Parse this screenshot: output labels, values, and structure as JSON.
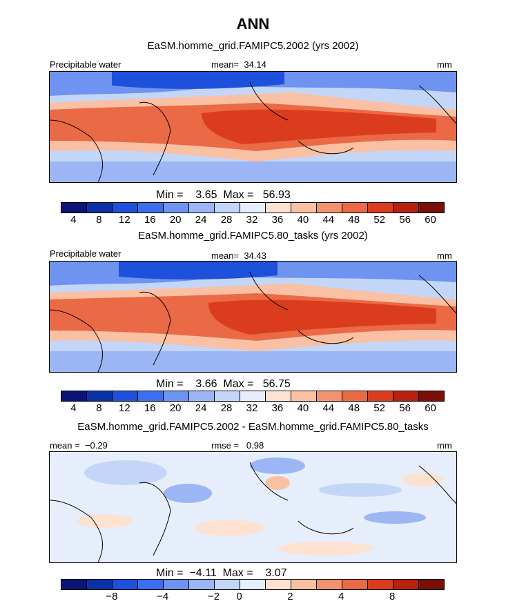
{
  "title": "ANN",
  "colors": [
    "#0c1478",
    "#0a32a8",
    "#1e50dc",
    "#3c6ef0",
    "#6f93f0",
    "#9cb6f5",
    "#c4d6f8",
    "#e6eefc",
    "#fde2d2",
    "#f9c0a4",
    "#f3926e",
    "#ea6a46",
    "#dc3c1e",
    "#b8200e",
    "#7a0f0a"
  ],
  "panels": [
    {
      "subtitle": "EaSM.homme_grid.FAMIPC5.2002 (yrs 2002)",
      "left_label": "Precipitable water",
      "center_label": "mean=  34.14",
      "units": "mm",
      "minmax": "Min =    3.65  Max =   56.93",
      "ticks": [
        "4",
        "8",
        "12",
        "16",
        "20",
        "24",
        "28",
        "32",
        "36",
        "40",
        "44",
        "48",
        "52",
        "56",
        "60"
      ]
    },
    {
      "subtitle": "EaSM.homme_grid.FAMIPC5.80_tasks (yrs 2002)",
      "left_label": "Precipitable water",
      "center_label": "mean=  34.43",
      "units": "mm",
      "minmax": "Min =    3.66  Max =   56.75",
      "ticks": [
        "4",
        "8",
        "12",
        "16",
        "20",
        "24",
        "28",
        "32",
        "36",
        "40",
        "44",
        "48",
        "52",
        "56",
        "60"
      ]
    },
    {
      "subtitle": "EaSM.homme_grid.FAMIPC5.2002 - EaSM.homme_grid.FAMIPC5.80_tasks",
      "left_label": "mean =  −0.29",
      "center_label": "rmse =   0.98",
      "units": "mm",
      "minmax": "Min =  −4.11  Max =    3.07",
      "ticks": [
        "−8",
        "−4",
        "−2",
        "0",
        "2",
        "4",
        "8"
      ]
    }
  ]
}
